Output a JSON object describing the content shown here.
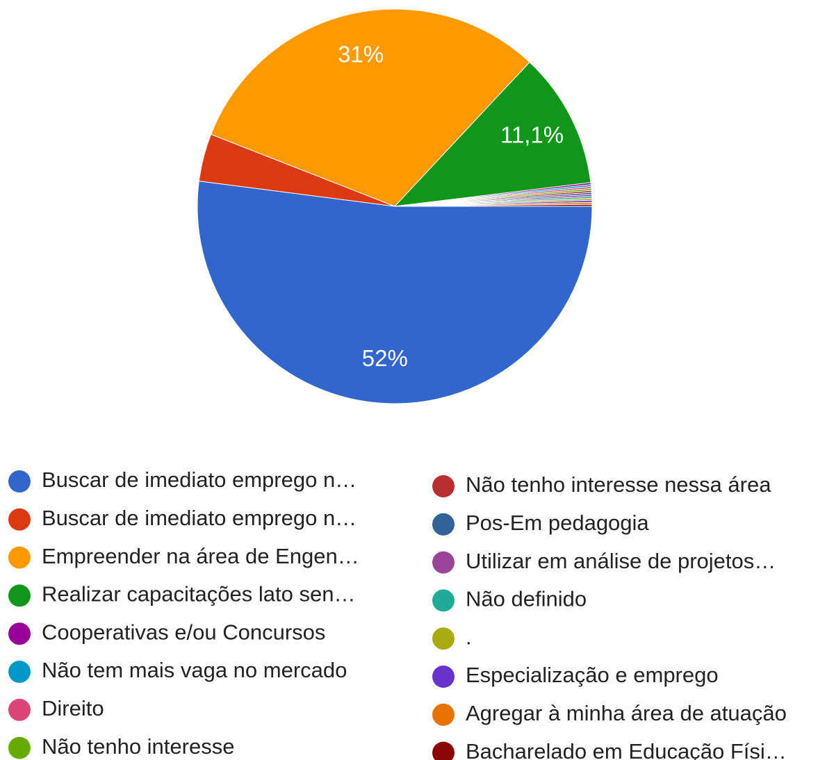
{
  "chart_data": {
    "type": "pie",
    "categories": [
      "Buscar de imediato emprego n…",
      "Buscar de imediato emprego n…",
      "Empreender na área de Engen…",
      "Realizar capacitações lato sen…",
      "Cooperativas e/ou Concursos",
      "Não tem mais vaga no mercado",
      "Direito",
      "Não tenho interesse",
      "Não tenho interesse nessa área",
      "Pos-Em pedagogia",
      "Utilizar em análise de projetos…",
      "Não definido",
      ".",
      "Especialização e emprego",
      "Agregar à minha área de atuação",
      "Bacharelado em Educação Físi…"
    ],
    "values": [
      52,
      3.9,
      31,
      11.1,
      0.16,
      0.16,
      0.16,
      0.16,
      0.16,
      0.16,
      0.16,
      0.16,
      0.16,
      0.16,
      0.16,
      0.16
    ],
    "value_labels": [
      "52%",
      null,
      "31%",
      "11,1%",
      null,
      null,
      null,
      null,
      null,
      null,
      null,
      null,
      null,
      null,
      null,
      null
    ],
    "colors": [
      "#3366cc",
      "#dc3912",
      "#ff9900",
      "#109618",
      "#990099",
      "#0099c6",
      "#dd4477",
      "#66aa00",
      "#b82e2e",
      "#316395",
      "#994499",
      "#22aa99",
      "#aaaa11",
      "#6633cc",
      "#e67300",
      "#8b0707"
    ]
  }
}
